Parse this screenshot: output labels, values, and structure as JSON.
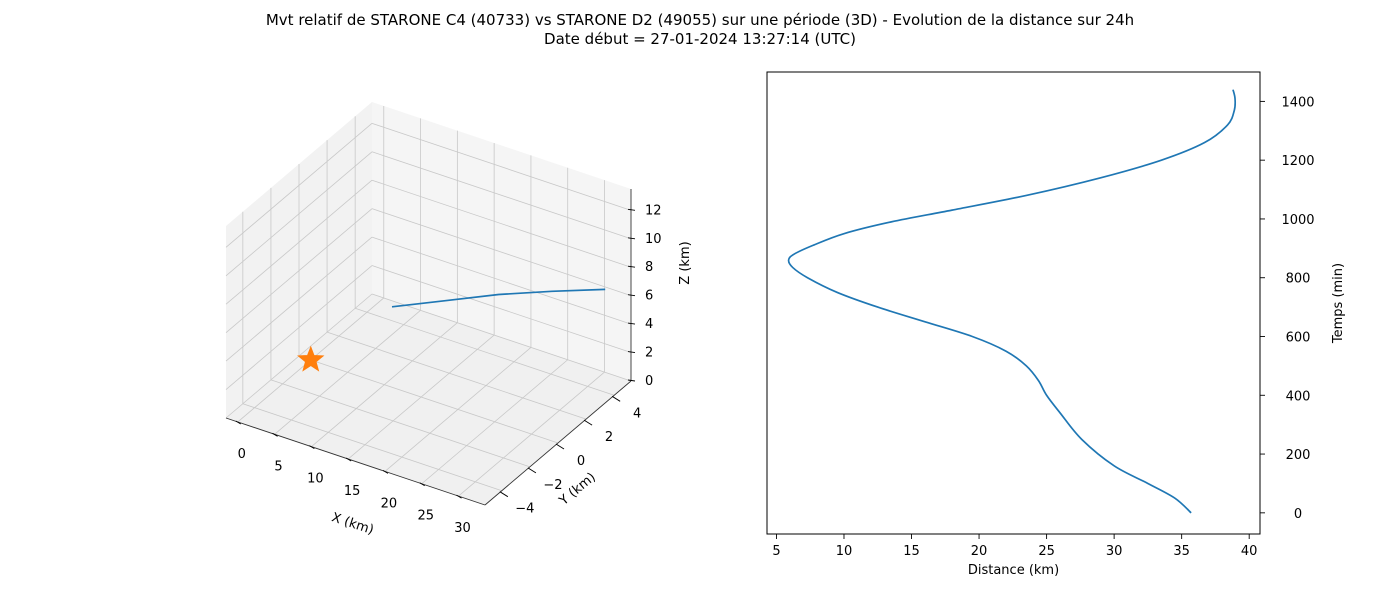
{
  "figure": {
    "title_line1": "Mvt relatif de STARONE C4 (40733) vs STARONE D2 (49055) sur une période (3D) - Evolution de la distance sur 24h",
    "title_line2": "Date début = 27-01-2024 13:27:14 (UTC)"
  },
  "colors": {
    "series": "#1f77b4",
    "marker": "#ff7f0e",
    "pane_left": "#f2f2f2",
    "pane_back": "#f5f5f5",
    "pane_floor": "#f0f0f0",
    "grid": "#c8c8c8"
  },
  "chart_data": [
    {
      "type": "line3d",
      "xlabel": "X (km)",
      "ylabel": "Y (km)",
      "zlabel": "Z (km)",
      "xticks": [
        "0",
        "5",
        "10",
        "15",
        "20",
        "25",
        "30"
      ],
      "yticks": [
        "−4",
        "−2",
        "0",
        "2",
        "4"
      ],
      "zticks": [
        "0",
        "2",
        "4",
        "6",
        "8",
        "10",
        "12"
      ],
      "xlim": [
        -1.6,
        33.6
      ],
      "ylim": [
        -5.2,
        5.2
      ],
      "zlim": [
        0,
        13.5
      ],
      "grid": true,
      "series": [
        {
          "values": [
            {
              "x": 32.0,
              "y": 4.2,
              "z": 7.0
            },
            {
              "x": 28.0,
              "y": 2.5,
              "z": 7.6
            },
            {
              "x": 24.0,
              "y": 0.8,
              "z": 8.1
            },
            {
              "x": 20.0,
              "y": -0.9,
              "z": 8.4
            },
            {
              "x": 16.0,
              "y": -2.6,
              "z": 8.7
            }
          ]
        }
      ],
      "markers": [
        {
          "shape": "star",
          "x": 0,
          "y": 0,
          "z": 0
        }
      ]
    },
    {
      "type": "line",
      "xlabel": "Distance (km)",
      "ylabel": "Temps (min)",
      "xticks": [
        5,
        10,
        15,
        20,
        25,
        30,
        35,
        40
      ],
      "yticks": [
        0,
        200,
        400,
        600,
        800,
        1000,
        1200,
        1400
      ],
      "xlim": [
        4.3,
        40.8
      ],
      "ylim": [
        -72,
        1500
      ],
      "y_axis_side": "right",
      "grid": false,
      "series": [
        {
          "x": [
            35.7,
            34.5,
            32.5,
            30.0,
            27.6,
            26.0,
            25.0,
            24.4,
            23.5,
            22.0,
            19.5,
            16.0,
            12.5,
            9.5,
            7.3,
            6.2,
            5.9,
            6.3,
            7.7,
            10.0,
            13.5,
            18.0,
            23.5,
            29.0,
            33.5,
            36.7,
            38.4,
            38.9,
            38.95,
            38.8
          ],
          "y": [
            0,
            50,
            100,
            160,
            250,
            340,
            400,
            450,
            500,
            550,
            600,
            650,
            700,
            750,
            800,
            835,
            860,
            880,
            910,
            950,
            990,
            1030,
            1080,
            1140,
            1200,
            1260,
            1320,
            1370,
            1410,
            1440
          ]
        }
      ]
    }
  ]
}
